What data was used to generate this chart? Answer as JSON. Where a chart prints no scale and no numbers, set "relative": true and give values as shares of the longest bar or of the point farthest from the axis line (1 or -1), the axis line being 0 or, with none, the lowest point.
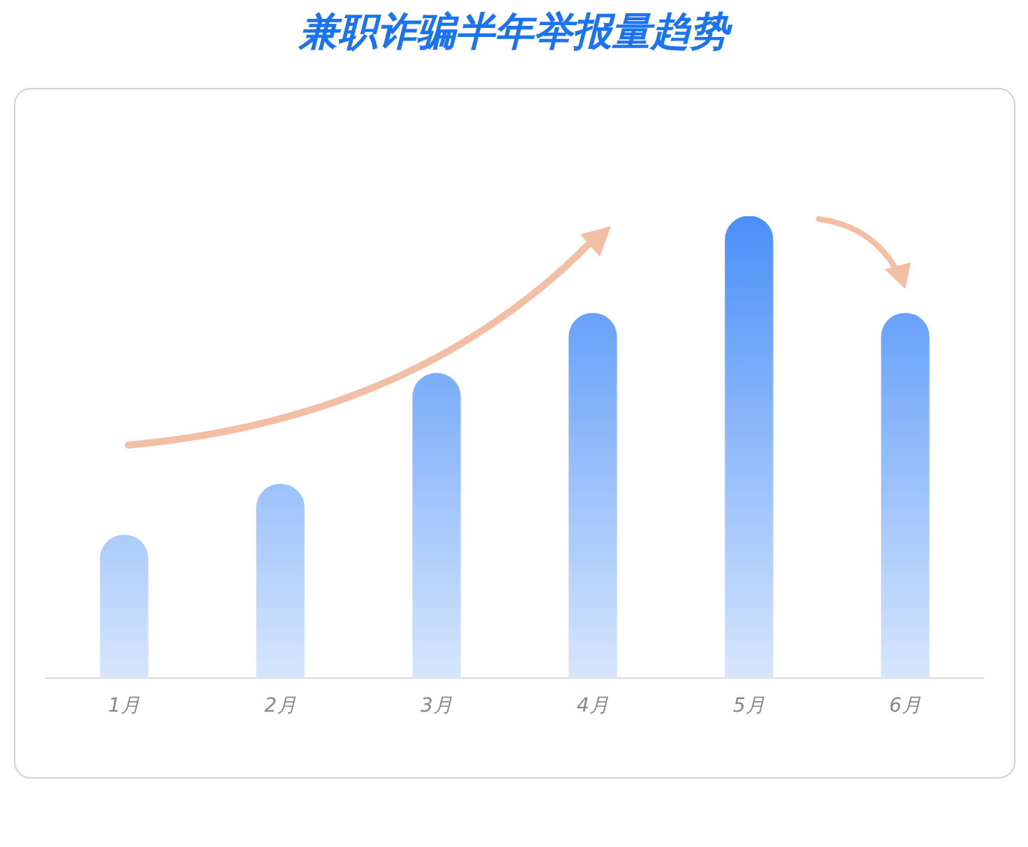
{
  "chart_data": {
    "type": "bar",
    "title": "兼职诈骗半年举报量趋势",
    "categories": [
      "1月",
      "2月",
      "3月",
      "4月",
      "5月",
      "6月"
    ],
    "values": [
      0.31,
      0.42,
      0.66,
      0.79,
      1,
      0.79
    ],
    "color": "#4a8ff8",
    "relative": true
  }
}
